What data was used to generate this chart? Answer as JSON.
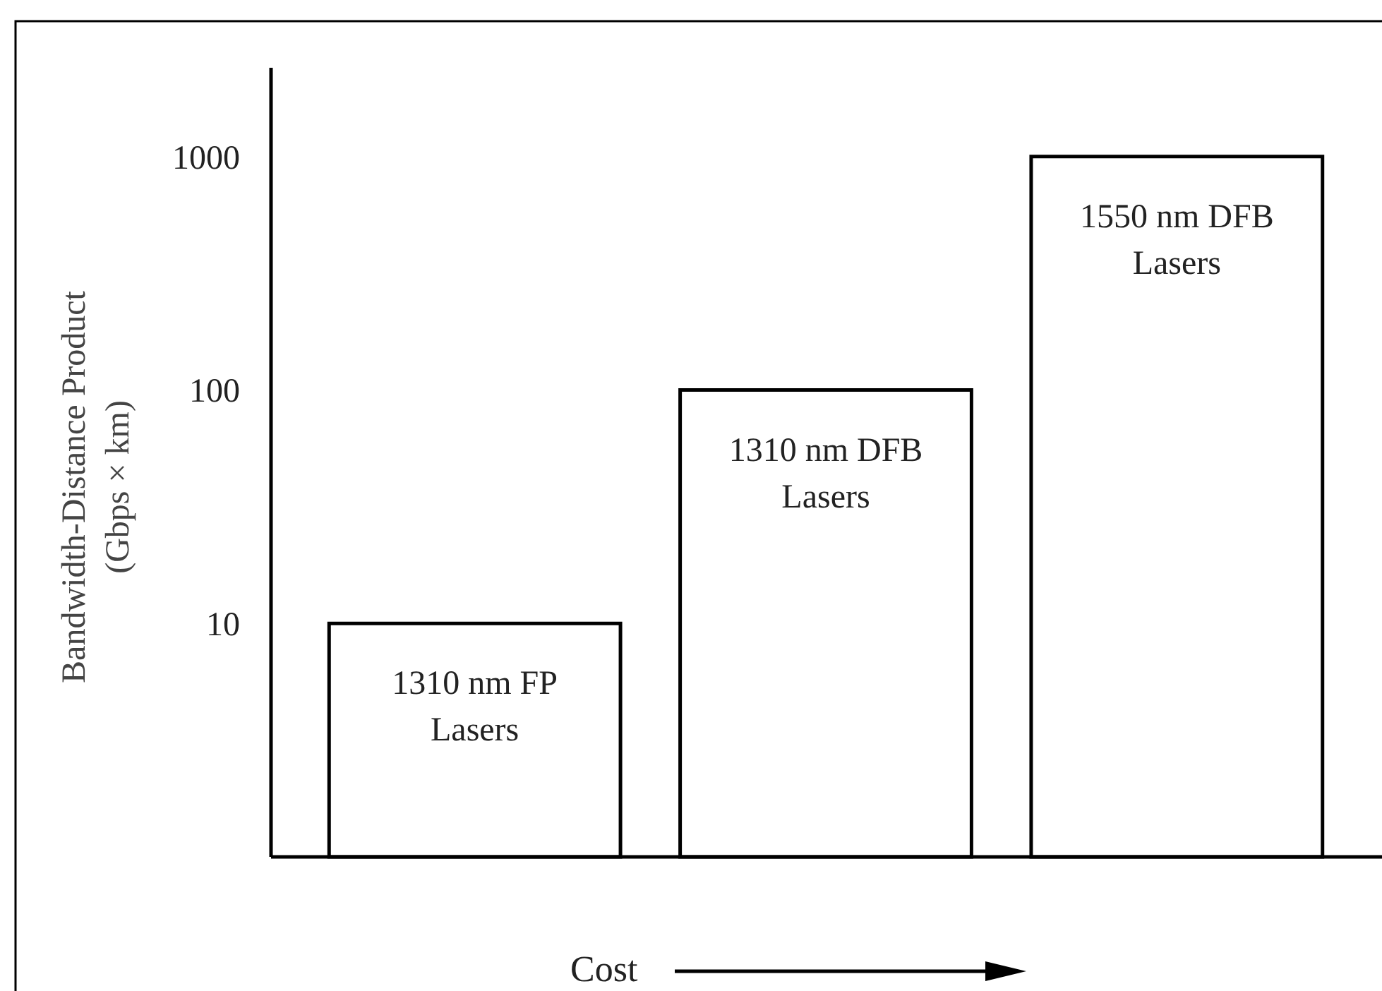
{
  "chart_data": {
    "type": "bar",
    "categories": [
      "1310 nm FP Lasers",
      "1310 nm DFB Lasers",
      "1550 nm DFB Lasers"
    ],
    "values": [
      10,
      100,
      1000
    ],
    "color": "#ffffff",
    "ylim": [
      1,
      2400
    ],
    "yticks": [
      10,
      100,
      1000
    ],
    "log": true,
    "grid": false,
    "xlabel": "Cost",
    "ylabel": "Bandwidth-Distance Product\n(Gbps × km)"
  }
}
